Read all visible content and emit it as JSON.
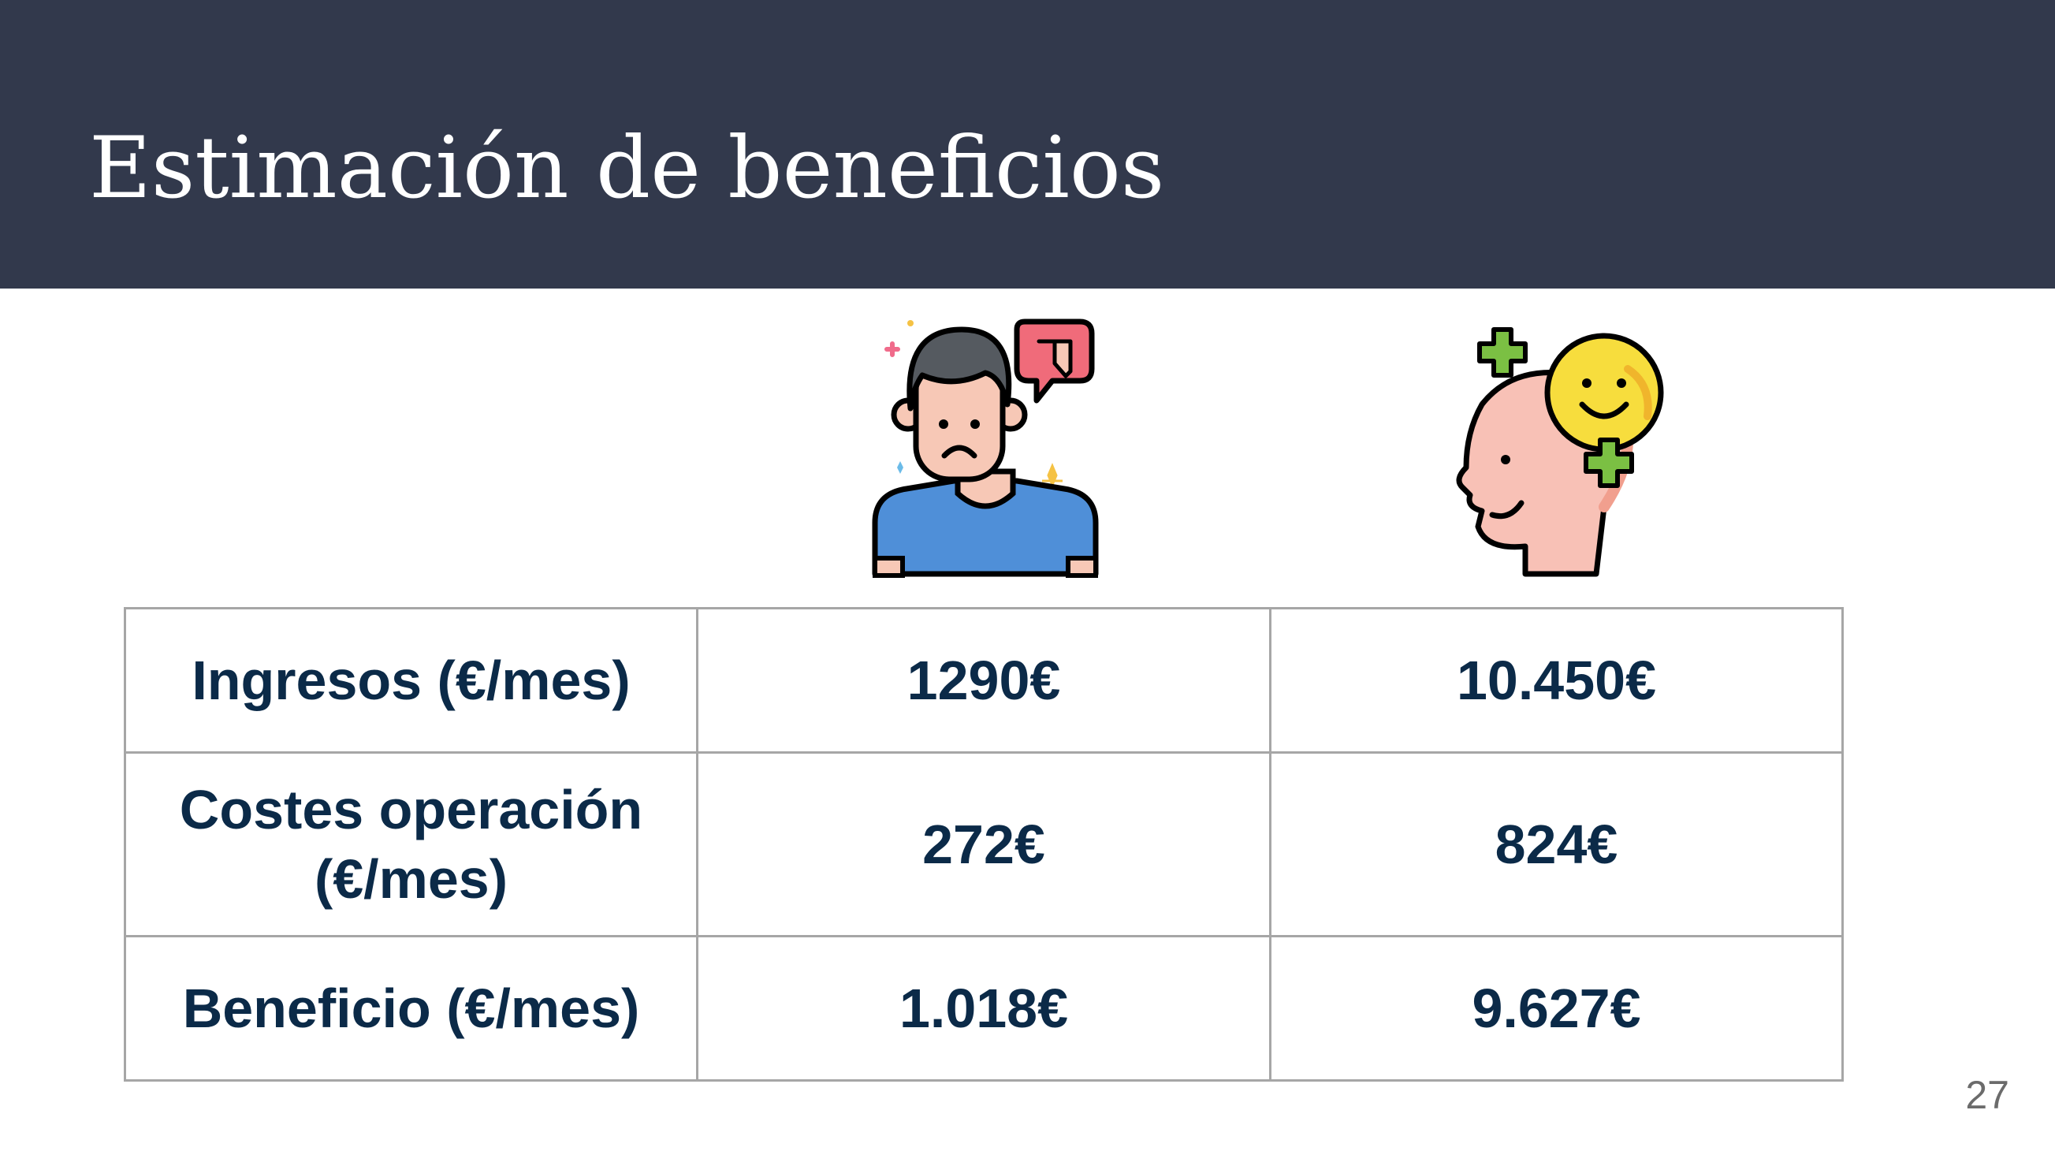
{
  "slide": {
    "title": "Estimación de beneficios",
    "page_number": "27"
  },
  "icons": {
    "scenario_1": "sad-person-thumbs-down-icon",
    "scenario_2": "happy-head-smiley-plus-icon"
  },
  "table": {
    "rows": [
      {
        "label": "Ingresos (€/mes)",
        "values": [
          "1290€",
          "10.450€"
        ]
      },
      {
        "label_line1": "Costes operación",
        "label_line2": "(€/mes)",
        "values": [
          "272€",
          "824€"
        ]
      },
      {
        "label": "Beneficio (€/mes)",
        "values": [
          "1.018€",
          "9.627€"
        ]
      }
    ]
  },
  "colors": {
    "header_bg": "#32394c",
    "text": "#0b2a48",
    "border": "#a6a6a6"
  }
}
